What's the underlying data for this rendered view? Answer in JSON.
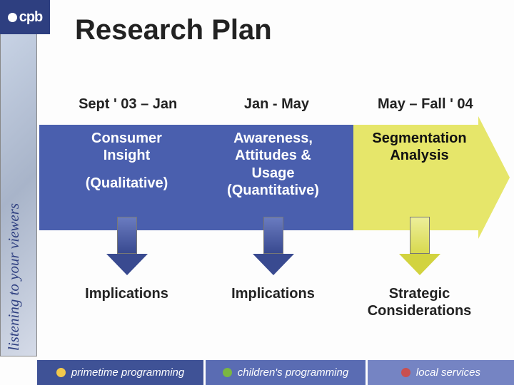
{
  "brand": {
    "logo_text": "cpb"
  },
  "sidebar_tagline": "listening to your viewers",
  "title": "Research Plan",
  "columns": {
    "dates": [
      "Sept ' 03 – Jan",
      "Jan - May",
      "May – Fall ' 04"
    ],
    "phases": [
      {
        "line1": "Consumer",
        "line2": "Insight",
        "sub": "(Qualitative)",
        "text_color": "#ffffff"
      },
      {
        "line1": "Awareness,",
        "line2": "Attitudes &",
        "line3": "Usage",
        "sub": "(Quantitative)",
        "text_color": "#ffffff"
      },
      {
        "line1": "Segmentation",
        "line2": "Analysis",
        "text_color": "#111111"
      }
    ],
    "bottom": [
      "Implications",
      "Implications",
      "Strategic\nConsiderations"
    ]
  },
  "arrow": {
    "segment_colors": [
      "#4a5fae",
      "#4a5fae",
      "#e6e66a"
    ],
    "head_color": "#e6e66a"
  },
  "down_arrows": [
    {
      "style": "blue"
    },
    {
      "style": "blue"
    },
    {
      "style": "yellow"
    }
  ],
  "footer": {
    "items": [
      {
        "label": "primetime programming",
        "ball": "#f2c94c"
      },
      {
        "label": "children's programming",
        "ball": "#7ab642"
      },
      {
        "label": "local services",
        "ball": "#c94f4f"
      }
    ],
    "bg_colors": [
      "#3f5296",
      "#5a6cb3",
      "#7584c3"
    ]
  },
  "fonts": {
    "title_pt": 40,
    "header_pt": 20,
    "phase_pt": 20,
    "bottom_pt": 20,
    "footer_pt": 15
  }
}
